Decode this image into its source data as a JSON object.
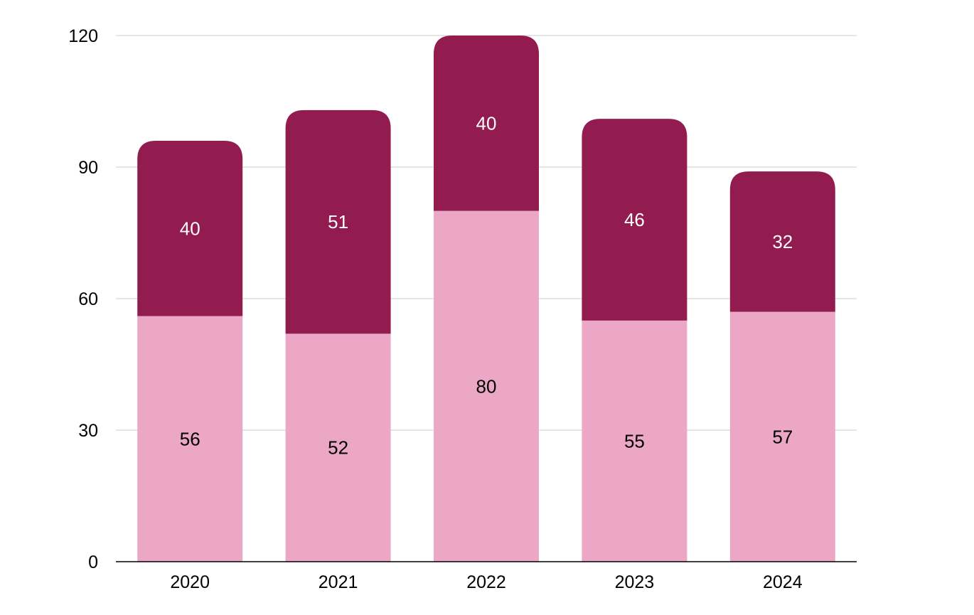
{
  "chart_data": {
    "type": "bar",
    "stacked": true,
    "categories": [
      "2020",
      "2021",
      "2022",
      "2023",
      "2024"
    ],
    "series": [
      {
        "values": [
          56,
          52,
          80,
          55,
          57
        ],
        "color": "#eca7c6",
        "label_color": "#000000"
      },
      {
        "values": [
          40,
          51,
          40,
          46,
          32
        ],
        "color": "#921c4f",
        "label_color": "#ffffff"
      }
    ],
    "ylim": [
      0,
      120
    ],
    "yticks": [
      0,
      30,
      60,
      90,
      120
    ],
    "grid": true,
    "legend": "none",
    "gridline_color": "#cccccc",
    "axis_color": "#000000"
  }
}
